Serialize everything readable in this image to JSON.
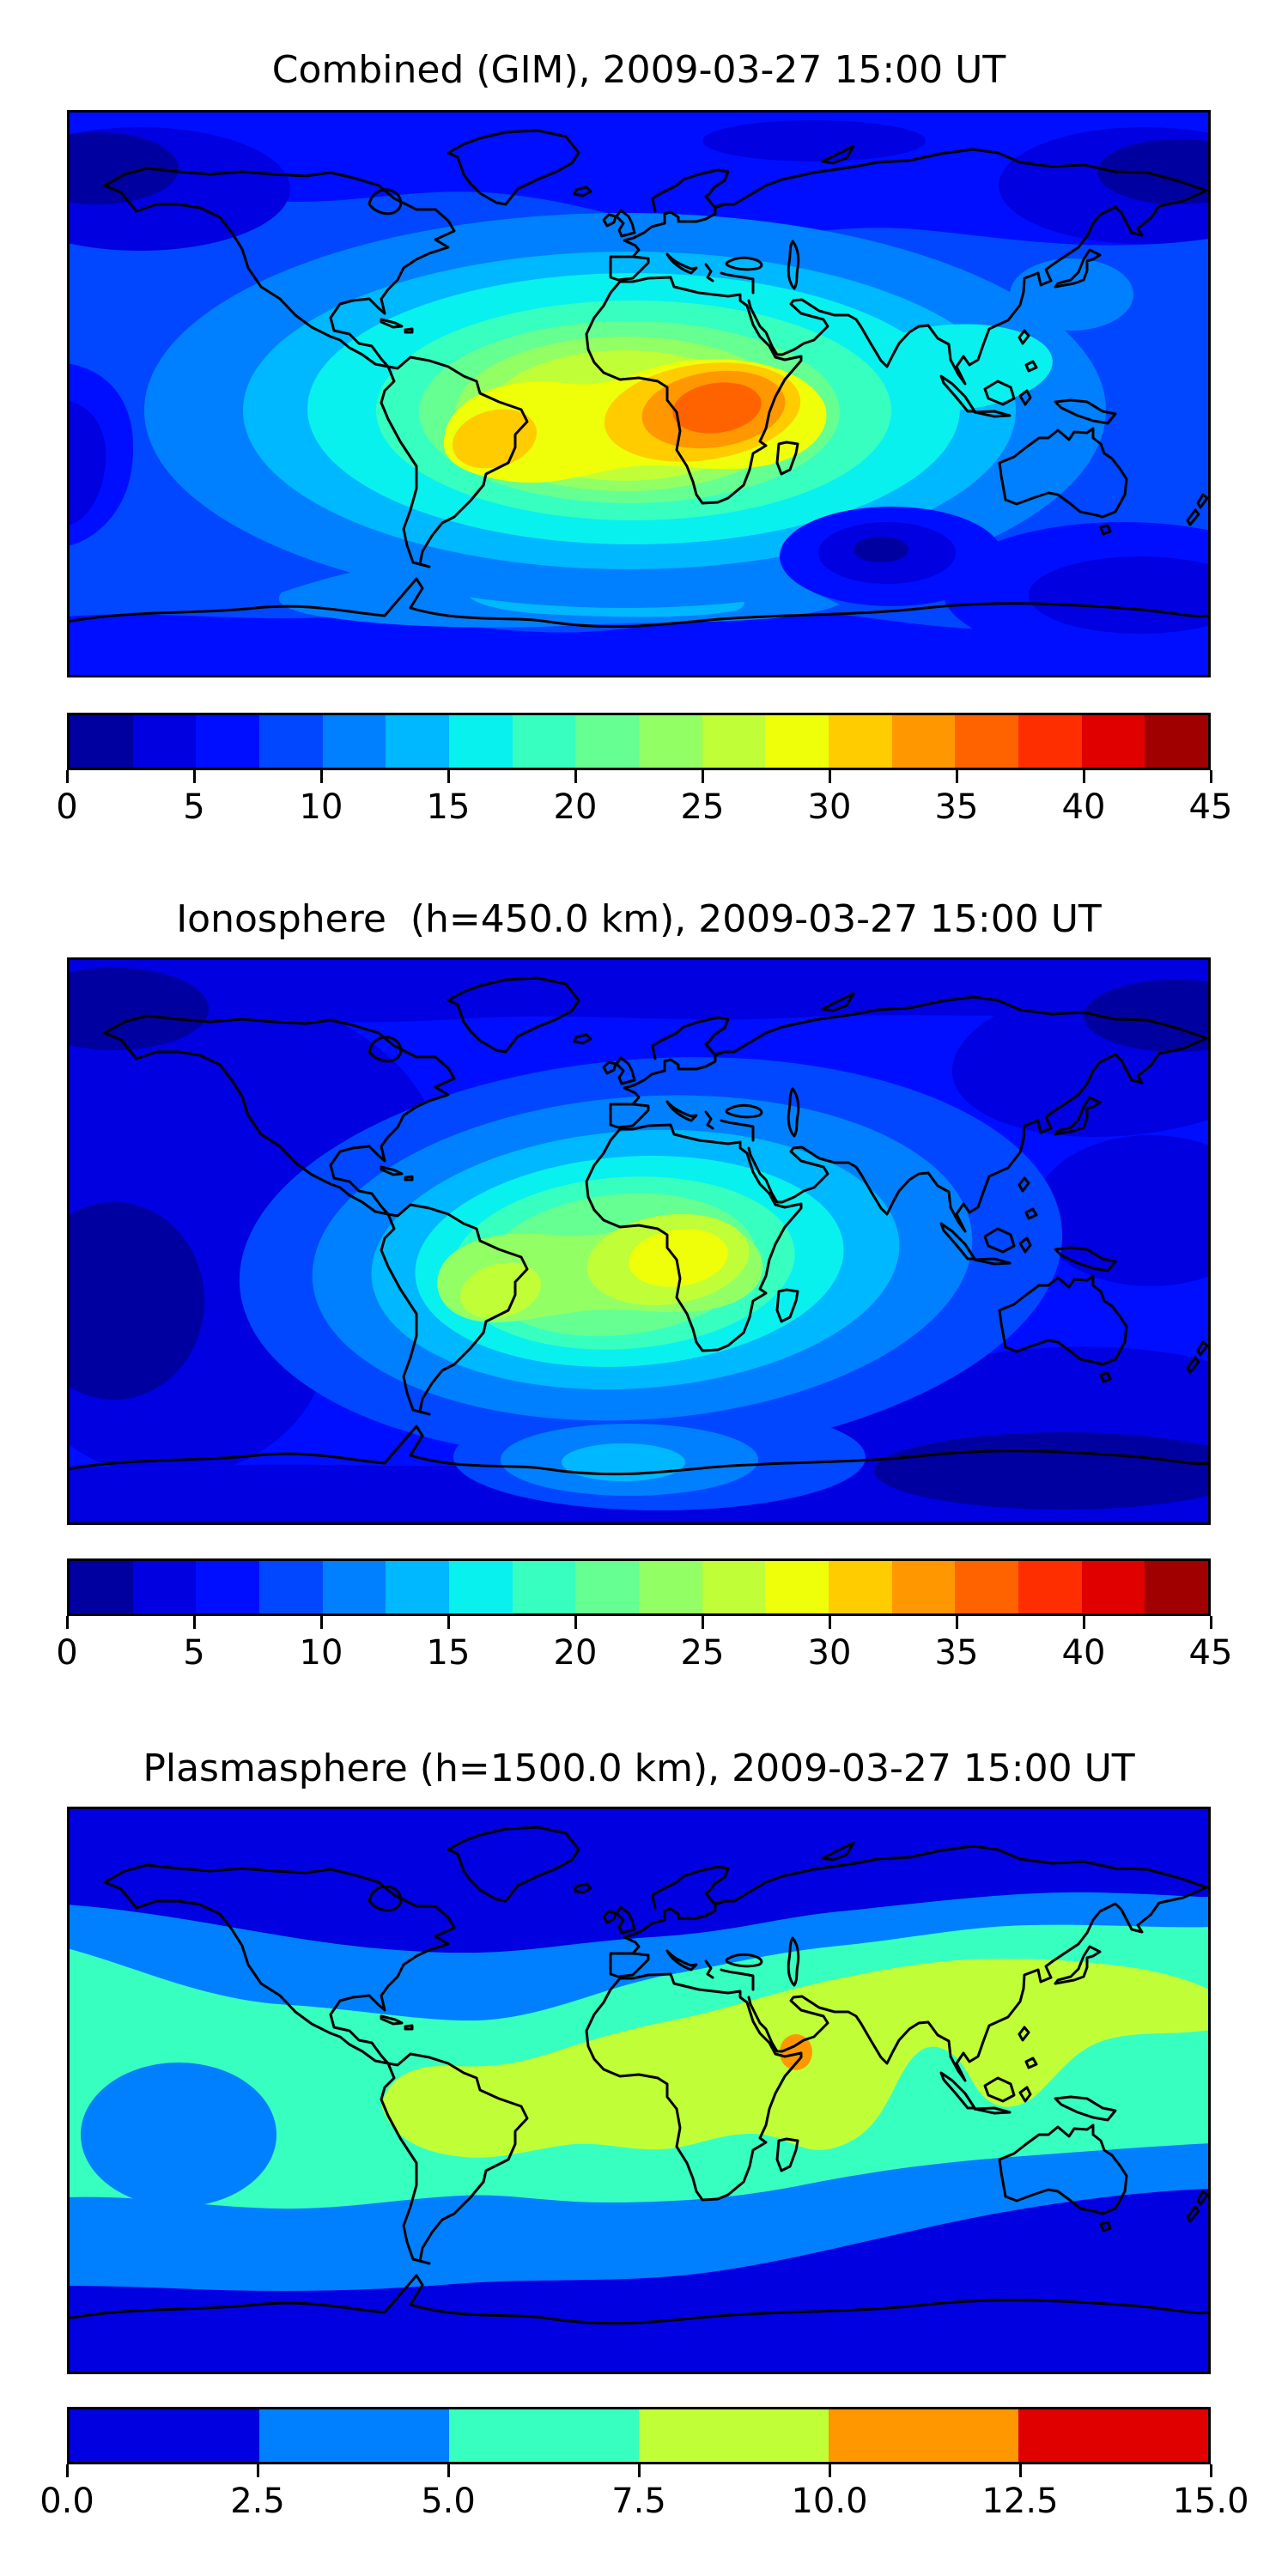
{
  "figure": {
    "background": "#ffffff",
    "text_color": "#000000"
  },
  "palettes": {
    "jet18": [
      "#0000a0",
      "#0000e0",
      "#000eff",
      "#0047ff",
      "#0080ff",
      "#00b8ff",
      "#09f1ee",
      "#37ffc0",
      "#65ff92",
      "#92ff65",
      "#c0ff37",
      "#eeff09",
      "#ffcc00",
      "#ff9700",
      "#ff6300",
      "#ff2e00",
      "#e00000",
      "#a00000"
    ],
    "jet6": [
      "#0000e0",
      "#0080ff",
      "#37ffc0",
      "#c0ff37",
      "#ff9700",
      "#e00000"
    ]
  },
  "panels": [
    {
      "title": "Combined (GIM), 2009-03-27 15:00 UT",
      "colorbar": {
        "palette": "jet18",
        "vmin": 0,
        "vmax": 45,
        "ticks": [
          "0",
          "5",
          "10",
          "15",
          "20",
          "25",
          "30",
          "35",
          "40",
          "45"
        ]
      }
    },
    {
      "title": "Ionosphere  (h=450.0 km), 2009-03-27 15:00 UT",
      "colorbar": {
        "palette": "jet18",
        "vmin": 0,
        "vmax": 45,
        "ticks": [
          "0",
          "5",
          "10",
          "15",
          "20",
          "25",
          "30",
          "35",
          "40",
          "45"
        ]
      }
    },
    {
      "title": "Plasmasphere (h=1500.0 km), 2009-03-27 15:00 UT",
      "colorbar": {
        "palette": "jet6",
        "vmin": 0,
        "vmax": 15,
        "ticks": [
          "0.0",
          "2.5",
          "5.0",
          "7.5",
          "10.0",
          "12.5",
          "15.0"
        ]
      }
    }
  ],
  "chart_data": [
    {
      "type": "heatmap",
      "subtype": "filled_contour_world_map",
      "title": "Combined (GIM), 2009-03-27 15:00 UT",
      "projection": "equirectangular",
      "lon_range": [
        -180,
        180
      ],
      "lat_range": [
        -90,
        90
      ],
      "colormap": "jet",
      "levels": {
        "min": 0,
        "max": 45,
        "step": 2.5,
        "n_bands": 18
      },
      "colorbar_ticks": [
        0,
        5,
        10,
        15,
        20,
        25,
        30,
        35,
        40,
        45
      ],
      "legend_position": "below",
      "features": [
        {
          "name": "primary-maximum",
          "approx_value": 37,
          "lon": 15,
          "lat": -6,
          "region": "central Africa / Gulf of Guinea"
        },
        {
          "name": "secondary-maximum",
          "approx_value": 31,
          "lon": -46,
          "lat": -13,
          "region": "eastern Brazil"
        },
        {
          "name": "elevated-tongue",
          "approx_value": 16,
          "lon_range": [
            60,
            130
          ],
          "lat_range": [
            -5,
            25
          ],
          "region": "India / Southeast Asia"
        },
        {
          "name": "minimum",
          "approx_value": 2,
          "region": "high-latitude corners (N Pacific, NE Siberia, S Indian Ocean)"
        }
      ]
    },
    {
      "type": "heatmap",
      "subtype": "filled_contour_world_map",
      "title": "Ionosphere  (h=450.0 km), 2009-03-27 15:00 UT",
      "projection": "equirectangular",
      "lon_range": [
        -180,
        180
      ],
      "lat_range": [
        -90,
        90
      ],
      "colormap": "jet",
      "levels": {
        "min": 0,
        "max": 45,
        "step": 2.5,
        "n_bands": 18
      },
      "colorbar_ticks": [
        0,
        5,
        10,
        15,
        20,
        25,
        30,
        35,
        40,
        45
      ],
      "legend_position": "below",
      "features": [
        {
          "name": "primary-maximum",
          "approx_value": 29,
          "lon": 13,
          "lat": -6,
          "region": "central Africa"
        },
        {
          "name": "secondary-maximum",
          "approx_value": 26,
          "lon": -47,
          "lat": -15,
          "region": "eastern Brazil"
        },
        {
          "name": "minimum",
          "approx_value": 2,
          "region": "Pacific and high latitudes"
        }
      ]
    },
    {
      "type": "heatmap",
      "subtype": "filled_contour_world_map",
      "title": "Plasmasphere (h=1500.0 km), 2009-03-27 15:00 UT",
      "projection": "equirectangular",
      "lon_range": [
        -180,
        180
      ],
      "lat_range": [
        -90,
        90
      ],
      "colormap": "jet",
      "levels": {
        "min": 0,
        "max": 15,
        "step": 2.5,
        "n_bands": 6
      },
      "colorbar_ticks": [
        0.0,
        2.5,
        5.0,
        7.5,
        10.0,
        12.5,
        15.0
      ],
      "legend_position": "below",
      "features": [
        {
          "name": "equatorial-band",
          "approx_value": 8.5,
          "lon_range": [
            -82,
            180
          ],
          "lat_range": [
            -18,
            42
          ],
          "region": "South America through Africa, Arabia, India to East Asia"
        },
        {
          "name": "maximum",
          "approx_value": 11,
          "lon": 50,
          "lat": 11,
          "region": "Horn of Africa / Gulf of Aden"
        },
        {
          "name": "midlatitude-band",
          "approx_value": 6,
          "region": "zonal turquoise band both hemispheres"
        },
        {
          "name": "polar-low",
          "approx_value": 1.5,
          "region": "poleward of ~55° both hemispheres"
        }
      ]
    }
  ]
}
